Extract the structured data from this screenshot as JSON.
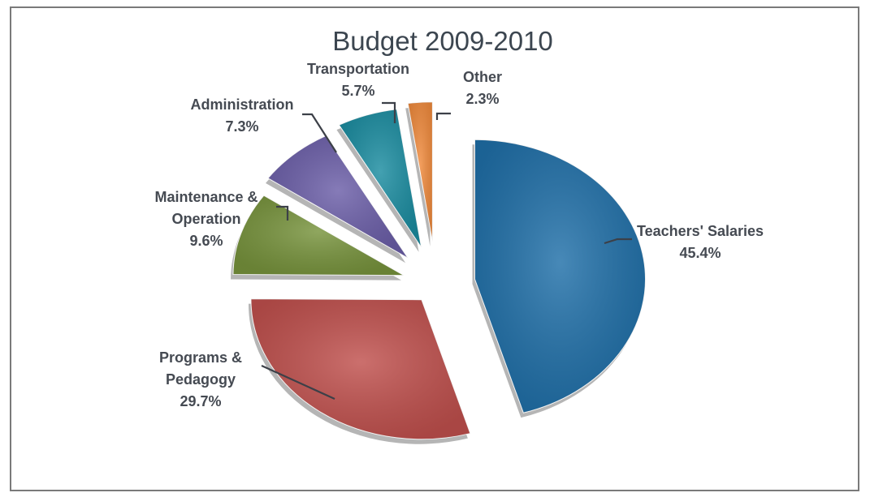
{
  "chart_data": {
    "type": "pie",
    "title": "Budget 2009-2010",
    "exploded": true,
    "slices": [
      {
        "label_lines": [
          "Teachers' Salaries"
        ],
        "value_label": "45.4%",
        "value": 45.4,
        "color": "#1f6fa8"
      },
      {
        "label_lines": [
          "Programs &",
          "Pedagogy"
        ],
        "value_label": "29.7%",
        "value": 29.7,
        "color": "#c0504d"
      },
      {
        "label_lines": [
          "Maintenance &",
          "Operation"
        ],
        "value_label": "9.6%",
        "value": 9.6,
        "color": "#77933c"
      },
      {
        "label_lines": [
          "Administration"
        ],
        "value_label": "7.3%",
        "value": 7.3,
        "color": "#6b5ea8"
      },
      {
        "label_lines": [
          "Transportation"
        ],
        "value_label": "5.7%",
        "value": 5.7,
        "color": "#1a8ca0"
      },
      {
        "label_lines": [
          "Other"
        ],
        "value_label": "2.3%",
        "value": 2.3,
        "color": "#f08a3c"
      }
    ]
  }
}
